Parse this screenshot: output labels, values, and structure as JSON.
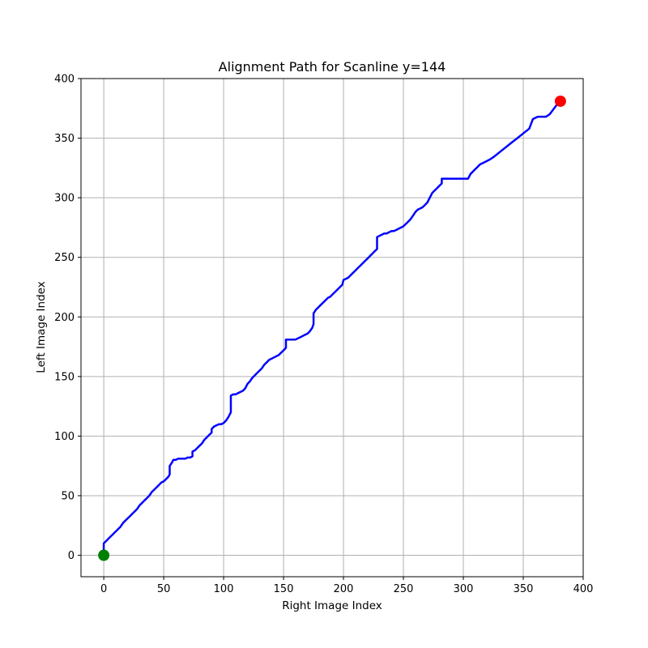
{
  "chart_data": {
    "type": "line",
    "title": "Alignment Path for Scanline y=144",
    "xlabel": "Right Image Index",
    "ylabel": "Left Image Index",
    "xlim": [
      -19,
      400
    ],
    "ylim": [
      -18,
      400
    ],
    "xticks": [
      0,
      50,
      100,
      150,
      200,
      250,
      300,
      350,
      400
    ],
    "yticks": [
      0,
      50,
      100,
      150,
      200,
      250,
      300,
      350,
      400
    ],
    "grid": true,
    "series": [
      {
        "color": "#0000ff",
        "x": [
          0,
          0,
          2,
          5,
          8,
          10,
          12,
          14,
          16,
          18,
          20,
          22,
          24,
          26,
          28,
          30,
          32,
          34,
          36,
          38,
          40,
          42,
          44,
          46,
          48,
          50,
          52,
          54,
          55,
          55,
          57,
          58,
          60,
          62,
          64,
          66,
          68,
          70,
          72,
          74,
          74,
          76,
          78,
          80,
          82,
          84,
          86,
          88,
          90,
          90,
          92,
          94,
          96,
          98,
          100,
          102,
          104,
          106,
          106,
          108,
          110,
          112,
          114,
          116,
          118,
          120,
          122,
          124,
          126,
          128,
          130,
          132,
          134,
          136,
          138,
          140,
          142,
          144,
          146,
          148,
          150,
          152,
          152,
          154,
          156,
          158,
          160,
          162,
          164,
          166,
          168,
          170,
          172,
          174,
          175,
          175,
          177,
          179,
          181,
          183,
          185,
          187,
          189,
          191,
          193,
          195,
          197,
          199,
          200,
          202,
          204,
          206,
          208,
          210,
          212,
          214,
          216,
          218,
          220,
          222,
          224,
          226,
          228,
          228,
          230,
          232,
          234,
          236,
          238,
          240,
          242,
          244,
          246,
          248,
          250,
          252,
          254,
          256,
          258,
          260,
          262,
          264,
          266,
          268,
          270,
          272,
          274,
          276,
          278,
          280,
          282,
          282,
          290,
          298,
          304,
          306,
          308,
          310,
          312,
          314,
          316,
          318,
          320,
          322,
          325,
          330,
          335,
          340,
          345,
          350,
          355,
          358,
          362,
          366,
          369,
          372,
          375,
          378,
          381
        ],
        "y": [
          0,
          10,
          12,
          15,
          18,
          20,
          22,
          24,
          27,
          29,
          31,
          33,
          35,
          37,
          39,
          42,
          44,
          46,
          48,
          50,
          53,
          55,
          57,
          59,
          61,
          62,
          64,
          66,
          68,
          75,
          78,
          80,
          80,
          81,
          81,
          81,
          81,
          82,
          82,
          83,
          87,
          88,
          90,
          92,
          94,
          97,
          99,
          101,
          103,
          106,
          108,
          109,
          110,
          110,
          111,
          113,
          116,
          120,
          134,
          135,
          135,
          136,
          137,
          138,
          140,
          144,
          146,
          149,
          151,
          153,
          155,
          157,
          160,
          162,
          164,
          165,
          166,
          167,
          168,
          170,
          172,
          174,
          181,
          181,
          181,
          181,
          181,
          182,
          183,
          184,
          185,
          186,
          188,
          191,
          194,
          203,
          206,
          208,
          210,
          212,
          214,
          216,
          217,
          219,
          221,
          223,
          225,
          227,
          231,
          232,
          233,
          235,
          237,
          239,
          241,
          243,
          245,
          247,
          249,
          251,
          253,
          255,
          257,
          267,
          268,
          269,
          270,
          270,
          271,
          272,
          272,
          273,
          274,
          275,
          276,
          278,
          280,
          282,
          285,
          288,
          290,
          291,
          292,
          294,
          296,
          300,
          304,
          306,
          308,
          310,
          312,
          316,
          316,
          316,
          316,
          320,
          322,
          324,
          326,
          328,
          329,
          330,
          331,
          332,
          334,
          338,
          342,
          346,
          350,
          354,
          358,
          366,
          368,
          368,
          368,
          370,
          374,
          378,
          381
        ]
      }
    ],
    "markers": [
      {
        "x": 0,
        "y": 0,
        "color": "#008000"
      },
      {
        "x": 381,
        "y": 381,
        "color": "#ff0000"
      }
    ]
  }
}
